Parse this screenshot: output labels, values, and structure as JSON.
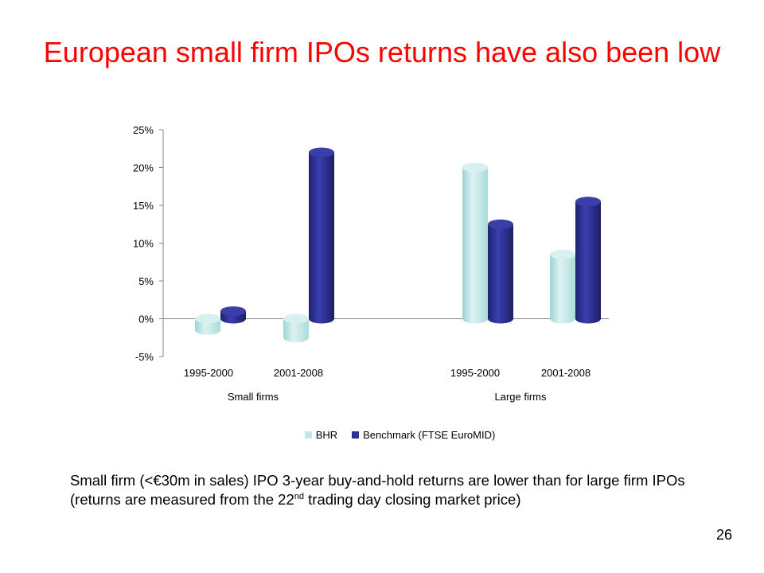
{
  "slide": {
    "title": "European small firm IPOs returns have also been low",
    "caption_part1": "Small firm (<€30m in sales) IPO 3-year buy-and-hold returns are lower than for large firm IPOs (returns are measured from the 22",
    "caption_sup": "nd",
    "caption_part2": " trading day closing market price)",
    "page_number": "26"
  },
  "chart_data": {
    "type": "bar",
    "title": "",
    "xlabel": "",
    "ylabel": "",
    "ylim": [
      -5,
      25
    ],
    "y_ticks": [
      "-5%",
      "0%",
      "5%",
      "10%",
      "15%",
      "20%",
      "25%"
    ],
    "y_tick_values": [
      -5,
      0,
      5,
      10,
      15,
      20,
      25
    ],
    "categories": [
      "1995-2000",
      "2001-2008",
      "1995-2000",
      "2001-2008"
    ],
    "groups": [
      "Small firms",
      "Large firms"
    ],
    "series": [
      {
        "name": "BHR",
        "color": "#bfe7e6",
        "values": [
          -1.5,
          -2.5,
          20.0,
          8.5
        ]
      },
      {
        "name": "Benchmark (FTSE EuroMID)",
        "color": "#2e3192",
        "values": [
          1.0,
          22.0,
          12.5,
          15.5
        ]
      }
    ],
    "legend_position": "bottom",
    "grid": false
  }
}
